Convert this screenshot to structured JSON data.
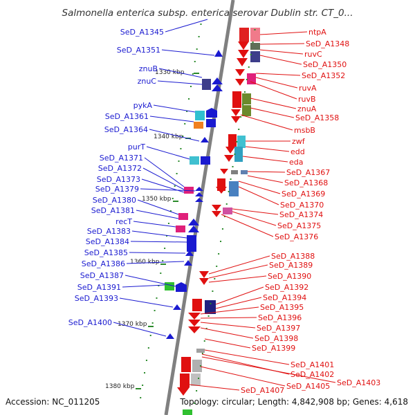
{
  "title": "Salmonella enterica subsp. enterica serovar Dublin str. CT_0...",
  "footer": {
    "accession": "Accession: NC_011205",
    "summary": "Topology: circular; Length: 4,842,908 bp; Genes: 4,618"
  },
  "scale_labels": [
    "1330 kbp",
    "1340 kbp",
    "1350 kbp",
    "1360 kbp",
    "1370 kbp",
    "1380 kbp"
  ],
  "left_labels": [
    "SeD_A1345",
    "SeD_A1351",
    "znuB",
    "znuC",
    "pykA",
    "SeD_A1361",
    "SeD_A1364",
    "purT",
    "SeD_A1371",
    "SeD_A1372",
    "SeD_A1373",
    "SeD_A1379",
    "SeD_A1380",
    "SeD_A1381",
    "recT",
    "SeD_A1383",
    "SeD_A1384",
    "SeD_A1385",
    "SeD_A1386",
    "SeD_A1387",
    "SeD_A1391",
    "SeD_A1393",
    "SeD_A1400"
  ],
  "right_labels": [
    "ntpA",
    "SeD_A1348",
    "ruvC",
    "SeD_A1350",
    "SeD_A1352",
    "ruvA",
    "ruvB",
    "znuA",
    "SeD_A1358",
    "msbB",
    "zwf",
    "edd",
    "eda",
    "SeD_A1367",
    "SeD_A1368",
    "SeD_A1369",
    "SeD_A1370",
    "SeD_A1374",
    "SeD_A1375",
    "SeD_A1376",
    "SeD_A1388",
    "SeD_A1389",
    "SeD_A1390",
    "SeD_A1392",
    "SeD_A1394",
    "SeD_A1395",
    "SeD_A1396",
    "SeD_A1397",
    "SeD_A1398",
    "SeD_A1399",
    "SeD_A1401",
    "SeD_A1402",
    "SeD_A1403",
    "SeD_A1405",
    "SeD_A1407"
  ],
  "colors": {
    "forward_strand": "#e01010",
    "reverse_strand": "#1a1ad0",
    "backbone": "#808080"
  }
}
